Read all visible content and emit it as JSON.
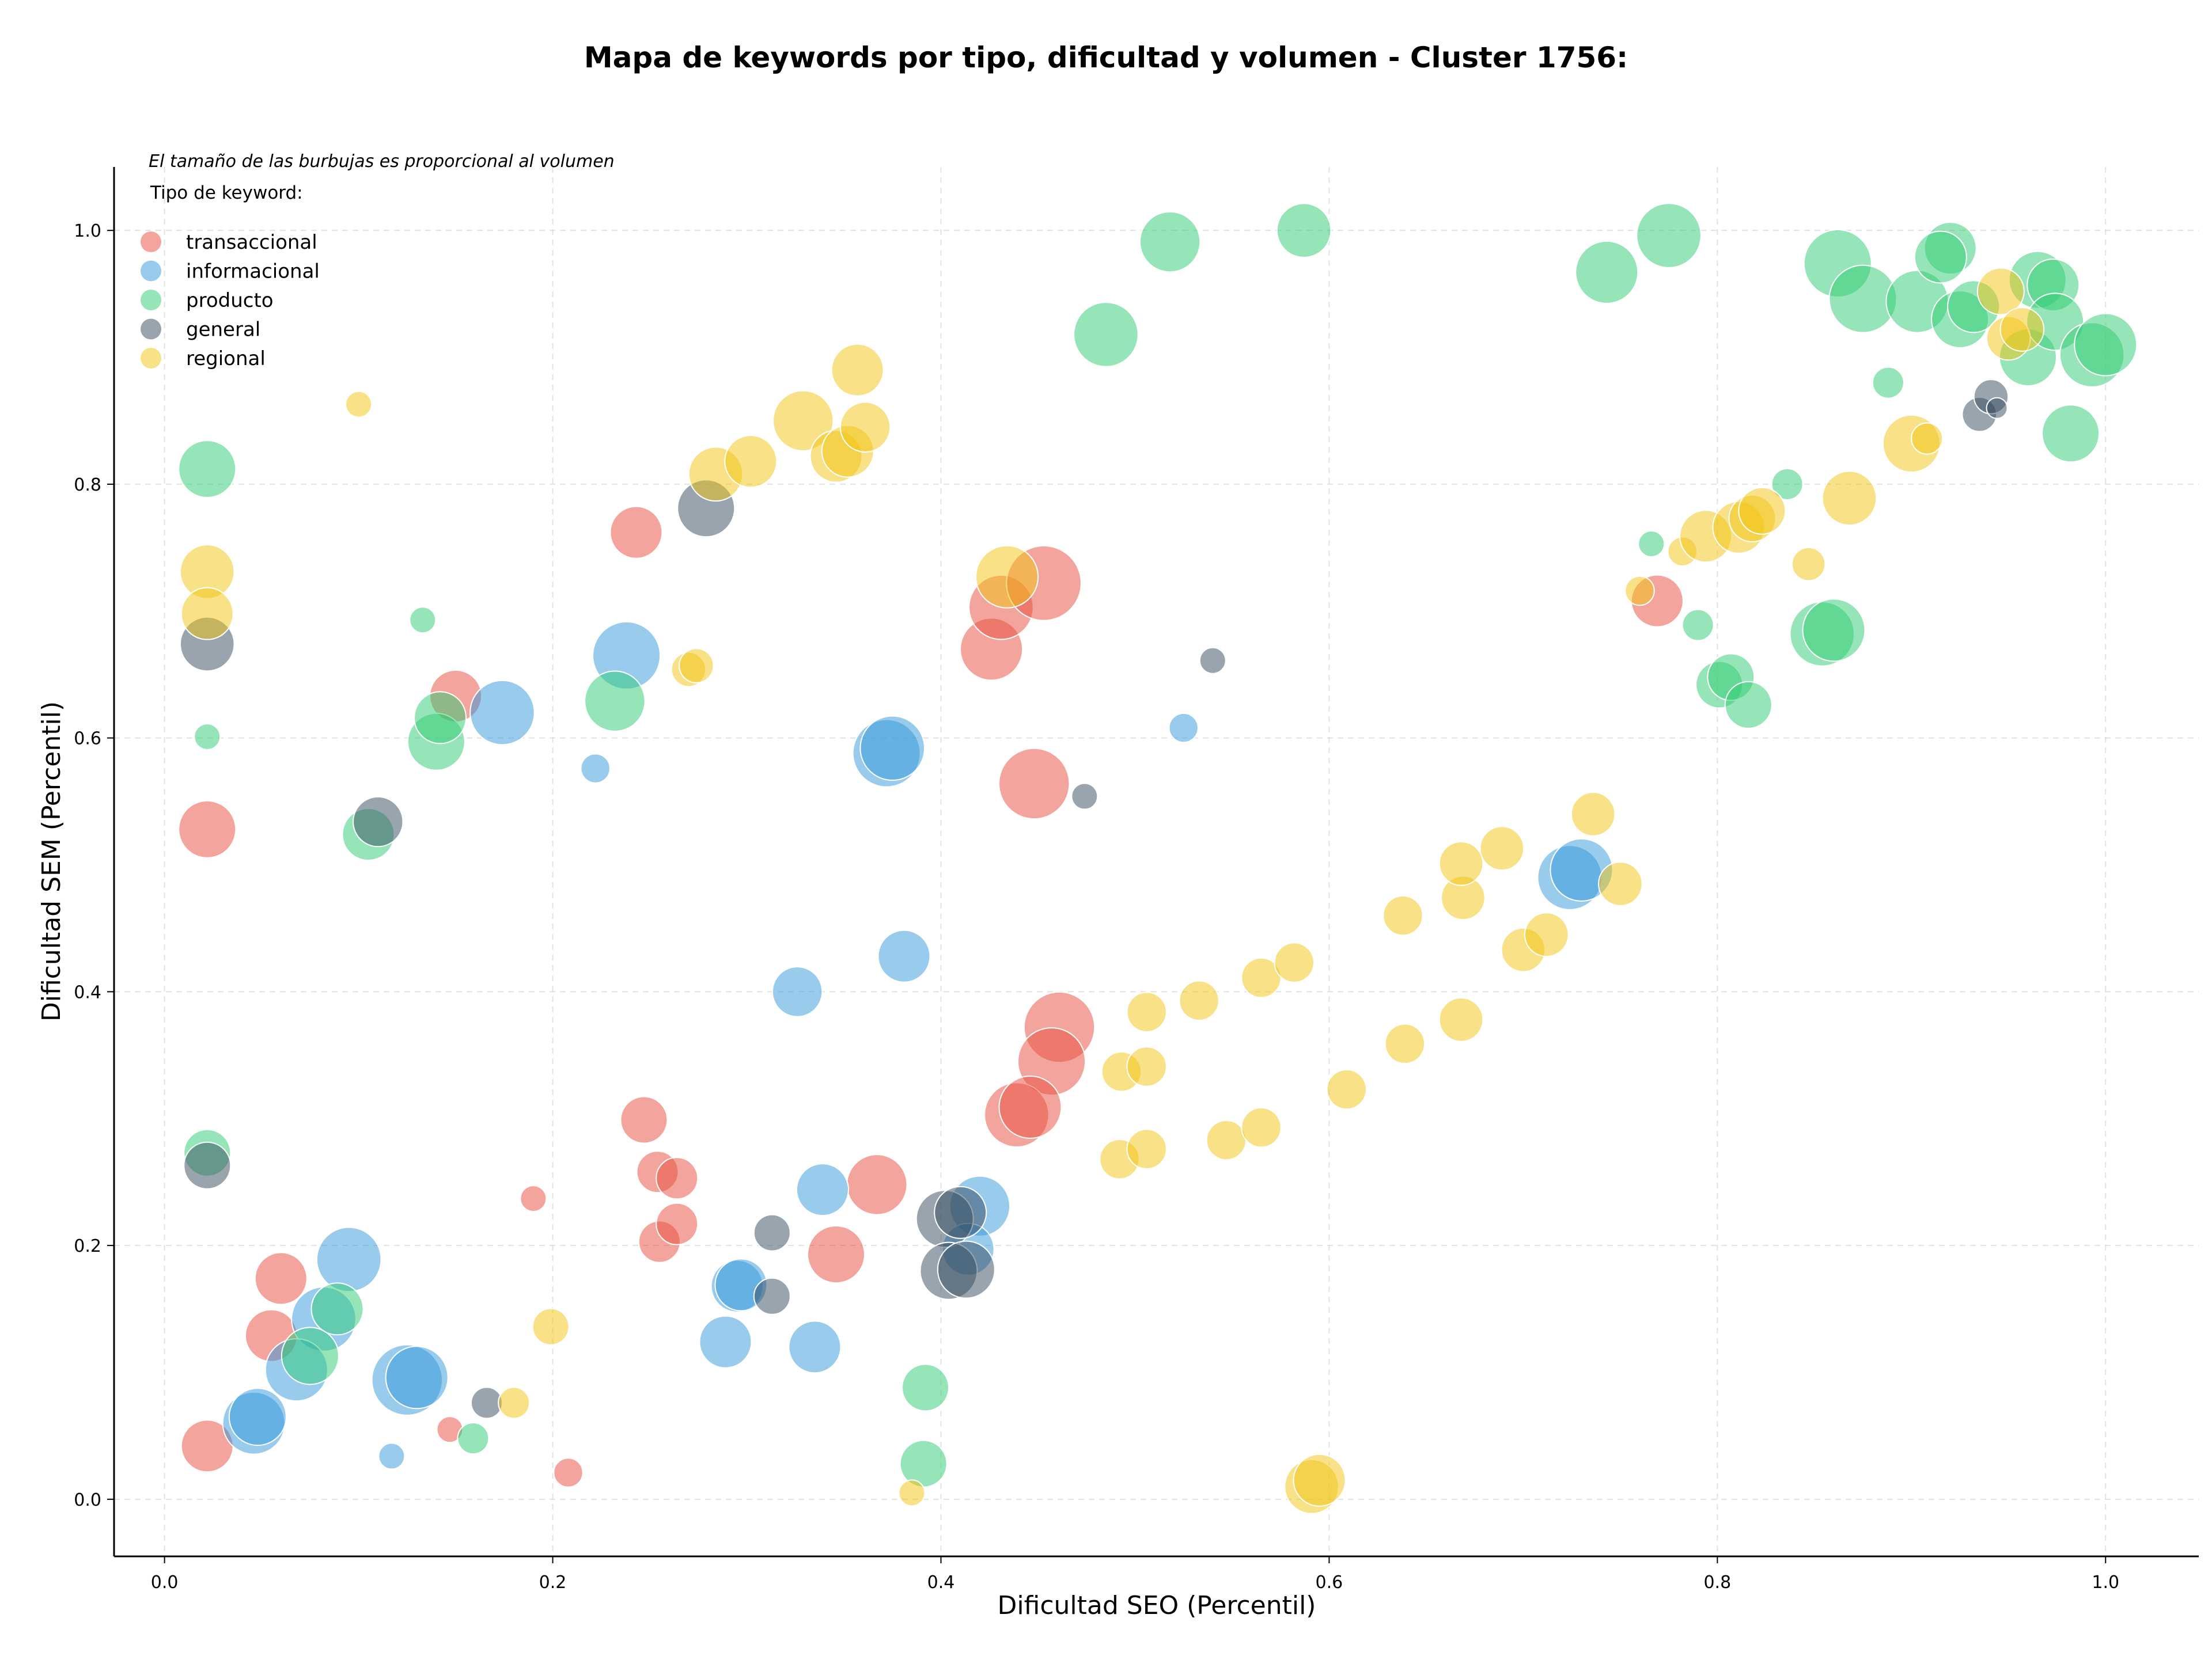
{
  "chart_data": {
    "type": "scatter",
    "title": "Mapa de keywords por tipo, dificultad y volumen - Cluster 1756:",
    "xlabel": "Dificultad SEO (Percentil)",
    "ylabel": "Dificultad SEM (Percentil)",
    "xlim": [
      -0.026,
      1.048
    ],
    "ylim": [
      -0.045,
      1.05
    ],
    "xticks": [
      0.0,
      0.2,
      0.4,
      0.6,
      0.8,
      1.0
    ],
    "yticks": [
      0.0,
      0.2,
      0.4,
      0.6,
      0.8,
      1.0
    ],
    "tick_labels": [
      "0.0",
      "0.2",
      "0.4",
      "0.6",
      "0.8",
      "1.0"
    ],
    "grid": true,
    "annotation": "El tamaño de las burbujas es proporcional al volumen",
    "legend": {
      "title": "Tipo de keyword:",
      "placement": "top-left",
      "entries": [
        "transaccional",
        "informacional",
        "producto",
        "general",
        "regional"
      ]
    },
    "series": [
      {
        "name": "transaccional",
        "color": "#e74c3c",
        "points": [
          [
            0.022,
            0.528,
            0.55
          ],
          [
            0.022,
            0.042,
            0.5
          ],
          [
            0.06,
            0.174,
            0.5
          ],
          [
            0.055,
            0.129,
            0.5
          ],
          [
            0.147,
            0.055,
            0.25
          ],
          [
            0.15,
            0.633,
            0.5
          ],
          [
            0.243,
            0.762,
            0.5
          ],
          [
            0.247,
            0.299,
            0.45
          ],
          [
            0.254,
            0.258,
            0.4
          ],
          [
            0.264,
            0.253,
            0.4
          ],
          [
            0.255,
            0.203,
            0.4
          ],
          [
            0.264,
            0.217,
            0.4
          ],
          [
            0.19,
            0.237,
            0.25
          ],
          [
            0.208,
            0.021,
            0.28
          ],
          [
            0.346,
            0.193,
            0.55
          ],
          [
            0.367,
            0.248,
            0.58
          ],
          [
            0.426,
            0.67,
            0.6
          ],
          [
            0.431,
            0.703,
            0.62
          ],
          [
            0.453,
            0.722,
            0.72
          ],
          [
            0.448,
            0.564,
            0.68
          ],
          [
            0.461,
            0.372,
            0.68
          ],
          [
            0.457,
            0.345,
            0.65
          ],
          [
            0.439,
            0.303,
            0.62
          ],
          [
            0.446,
            0.309,
            0.6
          ],
          [
            0.769,
            0.708,
            0.5
          ]
        ]
      },
      {
        "name": "informacional",
        "color": "#3498db",
        "points": [
          [
            0.095,
            0.189,
            0.62
          ],
          [
            0.082,
            0.142,
            0.62
          ],
          [
            0.068,
            0.102,
            0.6
          ],
          [
            0.046,
            0.06,
            0.6
          ],
          [
            0.048,
            0.065,
            0.55
          ],
          [
            0.125,
            0.094,
            0.68
          ],
          [
            0.13,
            0.096,
            0.6
          ],
          [
            0.117,
            0.034,
            0.25
          ],
          [
            0.174,
            0.62,
            0.62
          ],
          [
            0.238,
            0.665,
            0.65
          ],
          [
            0.222,
            0.576,
            0.28
          ],
          [
            0.289,
            0.124,
            0.5
          ],
          [
            0.295,
            0.168,
            0.5
          ],
          [
            0.297,
            0.169,
            0.5
          ],
          [
            0.326,
            0.4,
            0.48
          ],
          [
            0.335,
            0.12,
            0.5
          ],
          [
            0.339,
            0.244,
            0.5
          ],
          [
            0.372,
            0.588,
            0.65
          ],
          [
            0.375,
            0.592,
            0.62
          ],
          [
            0.381,
            0.428,
            0.5
          ],
          [
            0.42,
            0.231,
            0.58
          ],
          [
            0.414,
            0.197,
            0.5
          ],
          [
            0.525,
            0.608,
            0.28
          ],
          [
            0.724,
            0.49,
            0.62
          ],
          [
            0.73,
            0.496,
            0.6
          ]
        ]
      },
      {
        "name": "producto",
        "color": "#2ecc71",
        "points": [
          [
            0.022,
            0.812,
            0.55
          ],
          [
            0.022,
            0.601,
            0.25
          ],
          [
            0.022,
            0.273,
            0.45
          ],
          [
            0.105,
            0.524,
            0.5
          ],
          [
            0.075,
            0.113,
            0.55
          ],
          [
            0.089,
            0.15,
            0.5
          ],
          [
            0.133,
            0.693,
            0.25
          ],
          [
            0.14,
            0.597,
            0.55
          ],
          [
            0.142,
            0.616,
            0.5
          ],
          [
            0.232,
            0.629,
            0.58
          ],
          [
            0.159,
            0.048,
            0.3
          ],
          [
            0.392,
            0.088,
            0.45
          ],
          [
            0.391,
            0.028,
            0.45
          ],
          [
            0.485,
            0.918,
            0.62
          ],
          [
            0.518,
            0.991,
            0.58
          ],
          [
            0.587,
            1.0,
            0.52
          ],
          [
            0.743,
            0.967,
            0.6
          ],
          [
            0.775,
            0.996,
            0.62
          ],
          [
            0.766,
            0.753,
            0.25
          ],
          [
            0.79,
            0.689,
            0.3
          ],
          [
            0.801,
            0.642,
            0.45
          ],
          [
            0.807,
            0.648,
            0.45
          ],
          [
            0.816,
            0.626,
            0.45
          ],
          [
            0.836,
            0.8,
            0.3
          ],
          [
            0.888,
            0.88,
            0.3
          ],
          [
            0.854,
            0.682,
            0.62
          ],
          [
            0.86,
            0.685,
            0.6
          ],
          [
            0.862,
            0.974,
            0.65
          ],
          [
            0.875,
            0.946,
            0.65
          ],
          [
            0.903,
            0.944,
            0.6
          ],
          [
            0.92,
            0.986,
            0.5
          ],
          [
            0.915,
            0.979,
            0.5
          ],
          [
            0.925,
            0.93,
            0.55
          ],
          [
            0.932,
            0.94,
            0.5
          ],
          [
            0.965,
            0.961,
            0.55
          ],
          [
            0.973,
            0.957,
            0.5
          ],
          [
            0.96,
            0.9,
            0.55
          ],
          [
            0.974,
            0.928,
            0.55
          ],
          [
            0.982,
            0.84,
            0.55
          ],
          [
            0.993,
            0.902,
            0.62
          ],
          [
            1.0,
            0.91,
            0.6
          ]
        ]
      },
      {
        "name": "general",
        "color": "#34495e",
        "points": [
          [
            0.022,
            0.674,
            0.52
          ],
          [
            0.022,
            0.263,
            0.45
          ],
          [
            0.11,
            0.534,
            0.48
          ],
          [
            0.166,
            0.076,
            0.3
          ],
          [
            0.279,
            0.781,
            0.55
          ],
          [
            0.313,
            0.21,
            0.35
          ],
          [
            0.313,
            0.16,
            0.35
          ],
          [
            0.402,
            0.221,
            0.55
          ],
          [
            0.41,
            0.226,
            0.5
          ],
          [
            0.404,
            0.18,
            0.55
          ],
          [
            0.413,
            0.181,
            0.55
          ],
          [
            0.474,
            0.554,
            0.25
          ],
          [
            0.54,
            0.661,
            0.25
          ],
          [
            0.935,
            0.855,
            0.33
          ],
          [
            0.941,
            0.869,
            0.33
          ],
          [
            0.944,
            0.86,
            0.2
          ]
        ]
      },
      {
        "name": "regional",
        "color": "#f1c40f",
        "points": [
          [
            0.1,
            0.863,
            0.25
          ],
          [
            0.022,
            0.731,
            0.52
          ],
          [
            0.022,
            0.698,
            0.5
          ],
          [
            0.18,
            0.076,
            0.3
          ],
          [
            0.199,
            0.136,
            0.35
          ],
          [
            0.27,
            0.654,
            0.33
          ],
          [
            0.274,
            0.657,
            0.33
          ],
          [
            0.284,
            0.808,
            0.52
          ],
          [
            0.302,
            0.818,
            0.5
          ],
          [
            0.329,
            0.85,
            0.58
          ],
          [
            0.346,
            0.822,
            0.5
          ],
          [
            0.352,
            0.826,
            0.5
          ],
          [
            0.357,
            0.89,
            0.5
          ],
          [
            0.361,
            0.845,
            0.48
          ],
          [
            0.385,
            0.005,
            0.25
          ],
          [
            0.434,
            0.727,
            0.6
          ],
          [
            0.492,
            0.268,
            0.38
          ],
          [
            0.493,
            0.337,
            0.38
          ],
          [
            0.506,
            0.276,
            0.38
          ],
          [
            0.506,
            0.341,
            0.38
          ],
          [
            0.506,
            0.384,
            0.38
          ],
          [
            0.533,
            0.393,
            0.38
          ],
          [
            0.547,
            0.283,
            0.38
          ],
          [
            0.565,
            0.411,
            0.38
          ],
          [
            0.565,
            0.293,
            0.38
          ],
          [
            0.582,
            0.423,
            0.38
          ],
          [
            0.591,
            0.01,
            0.52
          ],
          [
            0.595,
            0.015,
            0.5
          ],
          [
            0.609,
            0.323,
            0.38
          ],
          [
            0.638,
            0.46,
            0.38
          ],
          [
            0.639,
            0.359,
            0.38
          ],
          [
            0.669,
            0.474,
            0.42
          ],
          [
            0.668,
            0.501,
            0.42
          ],
          [
            0.668,
            0.378,
            0.42
          ],
          [
            0.689,
            0.513,
            0.42
          ],
          [
            0.7,
            0.433,
            0.42
          ],
          [
            0.712,
            0.445,
            0.42
          ],
          [
            0.736,
            0.54,
            0.42
          ],
          [
            0.75,
            0.485,
            0.42
          ],
          [
            0.76,
            0.716,
            0.28
          ],
          [
            0.782,
            0.747,
            0.28
          ],
          [
            0.794,
            0.759,
            0.5
          ],
          [
            0.811,
            0.766,
            0.5
          ],
          [
            0.818,
            0.773,
            0.45
          ],
          [
            0.823,
            0.779,
            0.45
          ],
          [
            0.847,
            0.737,
            0.32
          ],
          [
            0.868,
            0.789,
            0.52
          ],
          [
            0.9,
            0.832,
            0.55
          ],
          [
            0.908,
            0.836,
            0.3
          ],
          [
            0.946,
            0.952,
            0.45
          ],
          [
            0.95,
            0.915,
            0.42
          ],
          [
            0.957,
            0.922,
            0.42
          ]
        ]
      }
    ]
  }
}
